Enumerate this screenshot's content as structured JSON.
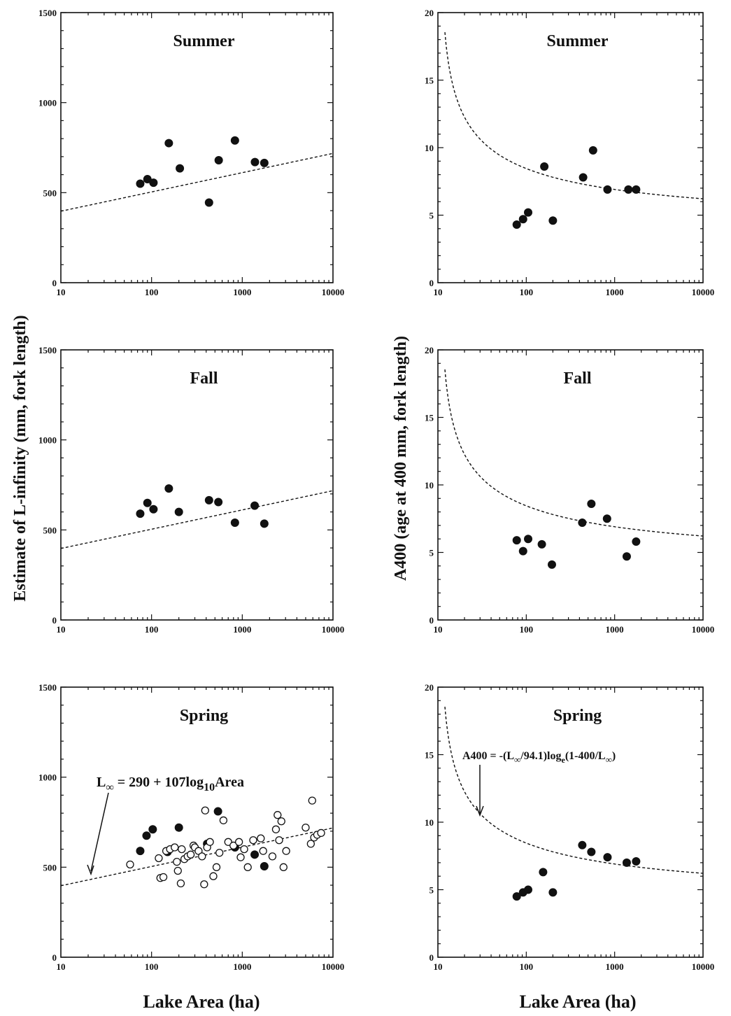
{
  "figure": {
    "ylabel_left": "Estimate of L-infinity (mm, fork length)",
    "ylabel_right": "A400 (age at 400 mm, fork length)",
    "xlabel_left": "Lake Area (ha)",
    "xlabel_right": "Lake Area (ha)",
    "equation_left": "L∞ = 290 + 107log10Area",
    "equation_right": "A400 = -(L∞/94.1)loge(1-400/L∞)"
  },
  "chart_data": [
    {
      "type": "scatter",
      "title": "Summer",
      "x_scale": "log",
      "xlim": [
        10,
        10000
      ],
      "ylim": [
        0,
        1500
      ],
      "x_ticks": [
        "10",
        "100",
        "1000",
        "10000"
      ],
      "y_ticks": [
        "0",
        "500",
        "1000",
        "1500"
      ],
      "series": [
        {
          "style": "filled",
          "points": [
            [
              75,
              550
            ],
            [
              90,
              575
            ],
            [
              105,
              555
            ],
            [
              155,
              775
            ],
            [
              205,
              635
            ],
            [
              430,
              445
            ],
            [
              550,
              680
            ],
            [
              830,
              790
            ],
            [
              1380,
              670
            ],
            [
              1750,
              665
            ]
          ]
        }
      ],
      "fit_line": "L = 290 + 107*log10(Area)"
    },
    {
      "type": "scatter",
      "title": "Summer",
      "x_scale": "log",
      "xlim": [
        10,
        10000
      ],
      "ylim": [
        0,
        20
      ],
      "x_ticks": [
        "10",
        "100",
        "1000",
        "10000"
      ],
      "y_ticks": [
        "0",
        "5",
        "10",
        "15",
        "20"
      ],
      "series": [
        {
          "style": "filled",
          "points": [
            [
              78,
              4.3
            ],
            [
              92,
              4.7
            ],
            [
              105,
              5.2
            ],
            [
              160,
              8.6
            ],
            [
              200,
              4.6
            ],
            [
              440,
              7.8
            ],
            [
              570,
              9.8
            ],
            [
              830,
              6.9
            ],
            [
              1430,
              6.9
            ],
            [
              1750,
              6.9
            ]
          ]
        }
      ],
      "fit_line": "A400 = -(L/94.1)*ln(1-400/L), L = 290 + 107*log10(Area)"
    },
    {
      "type": "scatter",
      "title": "Fall",
      "x_scale": "log",
      "xlim": [
        10,
        10000
      ],
      "ylim": [
        0,
        1500
      ],
      "x_ticks": [
        "10",
        "100",
        "1000",
        "10000"
      ],
      "y_ticks": [
        "0",
        "500",
        "1000",
        "1500"
      ],
      "series": [
        {
          "style": "filled",
          "points": [
            [
              75,
              590
            ],
            [
              90,
              650
            ],
            [
              105,
              615
            ],
            [
              155,
              730
            ],
            [
              200,
              600
            ],
            [
              430,
              665
            ],
            [
              545,
              655
            ],
            [
              830,
              540
            ],
            [
              1370,
              635
            ],
            [
              1750,
              535
            ]
          ]
        }
      ],
      "fit_line": "L = 290 + 107*log10(Area)"
    },
    {
      "type": "scatter",
      "title": "Fall",
      "x_scale": "log",
      "xlim": [
        10,
        10000
      ],
      "ylim": [
        0,
        20
      ],
      "x_ticks": [
        "10",
        "100",
        "1000",
        "10000"
      ],
      "y_ticks": [
        "0",
        "5",
        "10",
        "15",
        "20"
      ],
      "series": [
        {
          "style": "filled",
          "points": [
            [
              78,
              5.9
            ],
            [
              92,
              5.1
            ],
            [
              105,
              6.0
            ],
            [
              150,
              5.6
            ],
            [
              195,
              4.1
            ],
            [
              430,
              7.2
            ],
            [
              545,
              8.6
            ],
            [
              820,
              7.5
            ],
            [
              1370,
              4.7
            ],
            [
              1750,
              5.8
            ]
          ]
        }
      ],
      "fit_line": "A400 = -(L/94.1)*ln(1-400/L), L = 290 + 107*log10(Area)"
    },
    {
      "type": "scatter",
      "title": "Spring",
      "x_scale": "log",
      "xlim": [
        10,
        10000
      ],
      "ylim": [
        0,
        1500
      ],
      "x_ticks": [
        "10",
        "100",
        "1000",
        "10000"
      ],
      "y_ticks": [
        "0",
        "500",
        "1000",
        "1500"
      ],
      "series": [
        {
          "style": "filled",
          "points": [
            [
              75,
              590
            ],
            [
              88,
              675
            ],
            [
              103,
              710
            ],
            [
              150,
              585
            ],
            [
              200,
              720
            ],
            [
              410,
              630
            ],
            [
              540,
              810
            ],
            [
              830,
              610
            ],
            [
              1370,
              570
            ],
            [
              1750,
              505
            ]
          ]
        },
        {
          "style": "open",
          "points": [
            [
              58,
              515
            ],
            [
              120,
              550
            ],
            [
              125,
              440
            ],
            [
              135,
              445
            ],
            [
              145,
              590
            ],
            [
              160,
              600
            ],
            [
              180,
              610
            ],
            [
              190,
              530
            ],
            [
              195,
              480
            ],
            [
              210,
              410
            ],
            [
              215,
              600
            ],
            [
              230,
              545
            ],
            [
              250,
              560
            ],
            [
              270,
              570
            ],
            [
              290,
              620
            ],
            [
              300,
              610
            ],
            [
              330,
              590
            ],
            [
              360,
              560
            ],
            [
              380,
              405
            ],
            [
              390,
              815
            ],
            [
              410,
              610
            ],
            [
              440,
              640
            ],
            [
              480,
              450
            ],
            [
              520,
              500
            ],
            [
              560,
              580
            ],
            [
              620,
              760
            ],
            [
              700,
              640
            ],
            [
              800,
              620
            ],
            [
              920,
              640
            ],
            [
              960,
              555
            ],
            [
              1050,
              600
            ],
            [
              1150,
              500
            ],
            [
              1320,
              650
            ],
            [
              1600,
              660
            ],
            [
              1700,
              590
            ],
            [
              2150,
              560
            ],
            [
              2350,
              710
            ],
            [
              2450,
              790
            ],
            [
              2550,
              650
            ],
            [
              2700,
              755
            ],
            [
              2850,
              500
            ],
            [
              3050,
              590
            ],
            [
              5000,
              720
            ],
            [
              5700,
              630
            ],
            [
              5900,
              870
            ],
            [
              6200,
              665
            ],
            [
              6700,
              680
            ],
            [
              7400,
              690
            ]
          ]
        }
      ],
      "fit_line": "L = 290 + 107*log10(Area)",
      "annotation": "L∞ = 290 + 107log10Area"
    },
    {
      "type": "scatter",
      "title": "Spring",
      "x_scale": "log",
      "xlim": [
        10,
        10000
      ],
      "ylim": [
        0,
        20
      ],
      "x_ticks": [
        "10",
        "100",
        "1000",
        "10000"
      ],
      "y_ticks": [
        "0",
        "5",
        "10",
        "15",
        "20"
      ],
      "series": [
        {
          "style": "filled",
          "points": [
            [
              78,
              4.5
            ],
            [
              92,
              4.8
            ],
            [
              105,
              5.0
            ],
            [
              155,
              6.3
            ],
            [
              200,
              4.8
            ],
            [
              430,
              8.3
            ],
            [
              545,
              7.8
            ],
            [
              830,
              7.4
            ],
            [
              1370,
              7.0
            ],
            [
              1750,
              7.1
            ]
          ]
        }
      ],
      "fit_line": "A400 = -(L/94.1)*ln(1-400/L), L = 290 + 107*log10(Area)",
      "annotation": "A400 = -(L∞/94.1)loge(1-400/L∞)"
    }
  ]
}
